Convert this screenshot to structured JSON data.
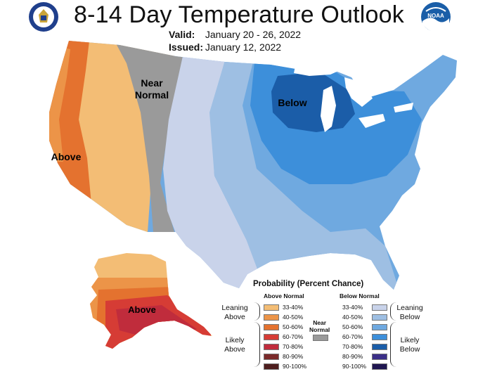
{
  "header": {
    "title": "8-14 Day Temperature Outlook",
    "valid_label": "Valid:",
    "valid_value": "January 20 - 26, 2022",
    "issued_label": "Issued:",
    "issued_value": "January 12, 2022",
    "left_logo": "commerce-seal-icon",
    "right_logo": "noaa-logo-icon",
    "noaa_text": "NOAA"
  },
  "map": {
    "labels": {
      "near_normal": [
        "Near",
        "Normal"
      ],
      "above_west": "Above",
      "below_great_lakes": "Below",
      "above_alaska": "Above"
    },
    "colors": {
      "above_33_40": "#f3bd75",
      "above_40_50": "#ec9448",
      "above_50_60": "#e4722f",
      "above_60_70": "#d63c35",
      "above_70_80": "#c02c3c",
      "above_80_90": "#7a2a2a",
      "above_90_100": "#4e1e1e",
      "near_normal": "#9a9a9a",
      "below_33_40": "#c9d3ea",
      "below_40_50": "#9ebfe3",
      "below_50_60": "#6fa9e0",
      "below_60_70": "#3d8fda",
      "below_70_80": "#1b5da8",
      "below_80_90": "#3b2f87",
      "below_90_100": "#1f1650",
      "water_land_border": "#ffffff"
    }
  },
  "legend": {
    "title": "Probability (Percent Chance)",
    "above_header": "Above Normal",
    "below_header": "Below Normal",
    "near_label": [
      "Near",
      "Normal"
    ],
    "leaning_above": [
      "Leaning",
      "Above"
    ],
    "likely_above": [
      "Likely",
      "Above"
    ],
    "leaning_below": [
      "Leaning",
      "Below"
    ],
    "likely_below": [
      "Likely",
      "Below"
    ],
    "ranges": [
      "33-40%",
      "40-50%",
      "50-60%",
      "60-70%",
      "70-80%",
      "80-90%",
      "90-100%"
    ]
  }
}
